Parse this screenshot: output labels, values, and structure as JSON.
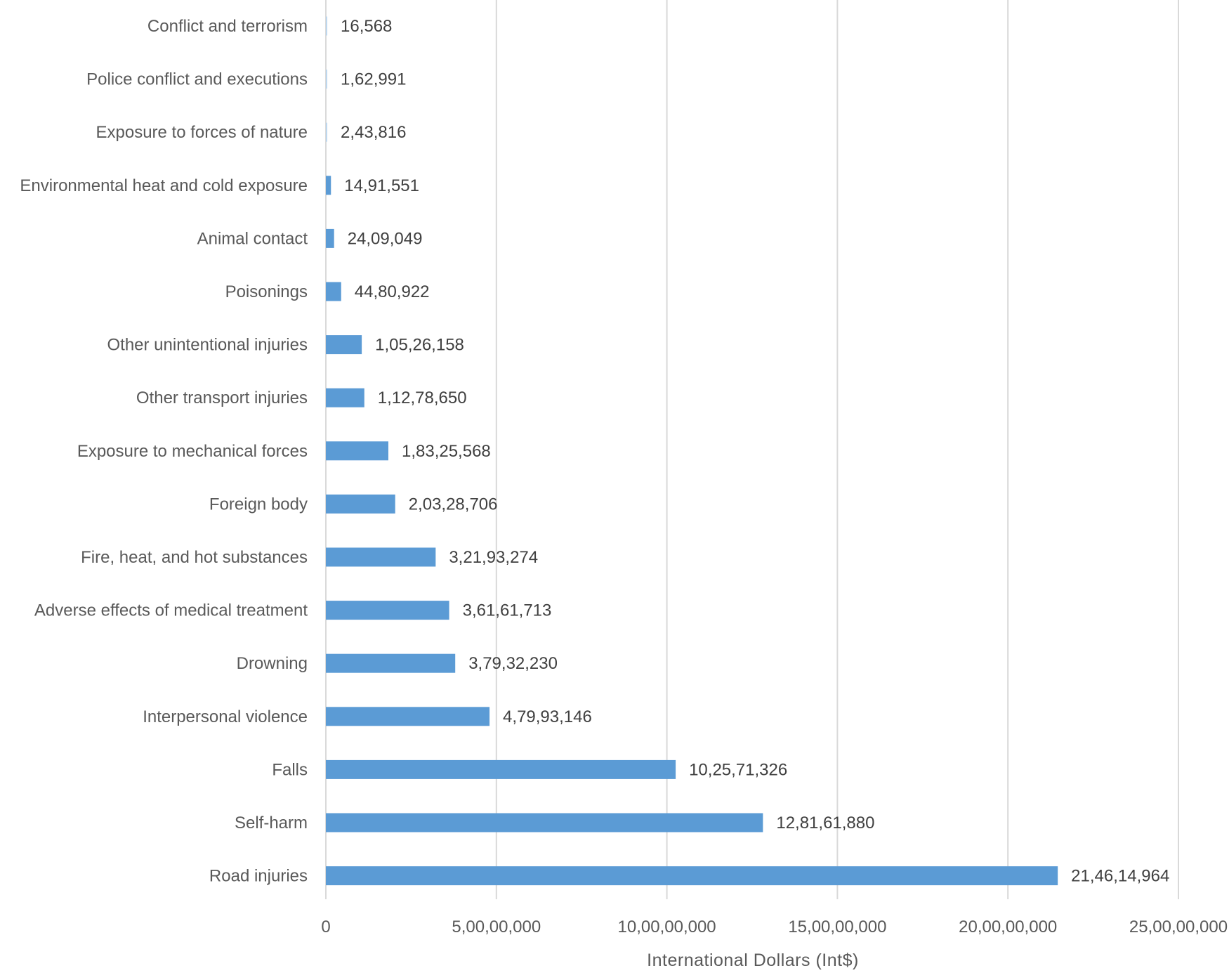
{
  "chart_data": {
    "type": "bar",
    "orientation": "horizontal",
    "title": "",
    "xlabel": "International Dollars (Int$)",
    "ylabel": "",
    "xlim": [
      0,
      250000000
    ],
    "x_ticks": [
      0,
      50000000,
      100000000,
      150000000,
      200000000,
      250000000
    ],
    "x_tick_labels": [
      "0",
      "5,00,00,000",
      "10,00,00,000",
      "15,00,00,000",
      "20,00,00,000",
      "25,00,00,000"
    ],
    "grid": "vertical major gridlines",
    "legend": "none",
    "bar_color": "#5B9BD5",
    "bar_color_small": "#BDD7EE",
    "categories": [
      "Conflict and terrorism",
      "Police conflict and executions",
      "Exposure to forces of nature",
      "Environmental heat and cold exposure",
      "Animal contact",
      "Poisonings",
      "Other unintentional injuries",
      "Other transport injuries",
      "Exposure to mechanical forces",
      "Foreign body",
      "Fire, heat, and hot substances",
      "Adverse effects of medical treatment",
      "Drowning",
      "Interpersonal violence",
      "Falls",
      "Self-harm",
      "Road injuries"
    ],
    "values": [
      16568,
      162991,
      243816,
      1491551,
      2409049,
      4480922,
      10526158,
      11278650,
      18325568,
      20328706,
      32193274,
      36161713,
      37932230,
      47993146,
      102571326,
      128161880,
      214614964
    ],
    "data_labels": [
      "16,568",
      "1,62,991",
      "2,43,816",
      "14,91,551",
      "24,09,049",
      "44,80,922",
      "1,05,26,158",
      "1,12,78,650",
      "1,83,25,568",
      "2,03,28,706",
      "3,21,93,274",
      "3,61,61,713",
      "3,79,32,230",
      "4,79,93,146",
      "10,25,71,326",
      "12,81,61,880",
      "21,46,14,964"
    ]
  }
}
